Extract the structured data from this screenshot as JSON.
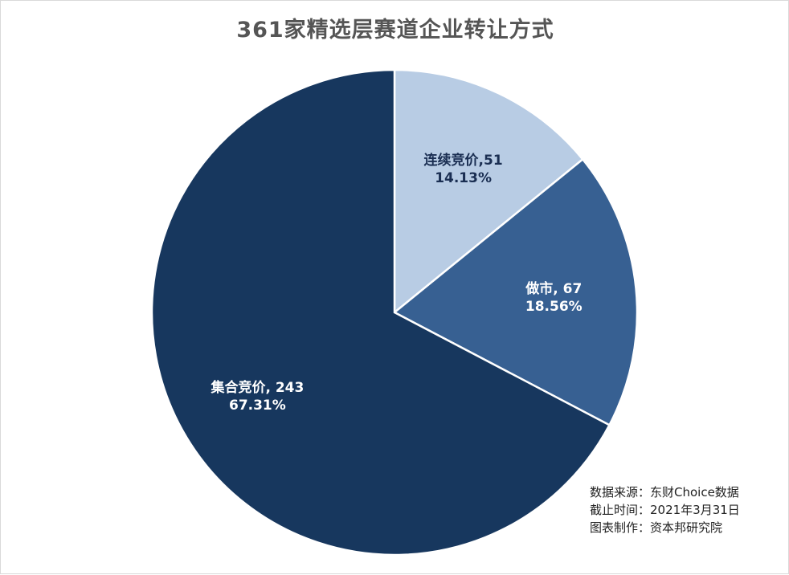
{
  "chart_data": {
    "type": "pie",
    "title": "361家精选层赛道企业转让方式",
    "slices": [
      {
        "label": "连续竞价",
        "value": 51,
        "percent": "14.13%",
        "color": "#b8cce4",
        "text_color": "#1a2e52",
        "sep": ","
      },
      {
        "label": "做市",
        "value": 67,
        "percent": "18.56%",
        "color": "#376092",
        "text_color": "#ffffff",
        "sep": ", "
      },
      {
        "label": "集合竞价",
        "value": 243,
        "percent": "67.31%",
        "color": "#17375e",
        "text_color": "#ffffff",
        "sep": ", "
      }
    ]
  },
  "footnotes": {
    "source": "数据来源：东财Choice数据",
    "date": "截止时间：2021年3月31日",
    "author": "图表制作：资本邦研究院"
  }
}
